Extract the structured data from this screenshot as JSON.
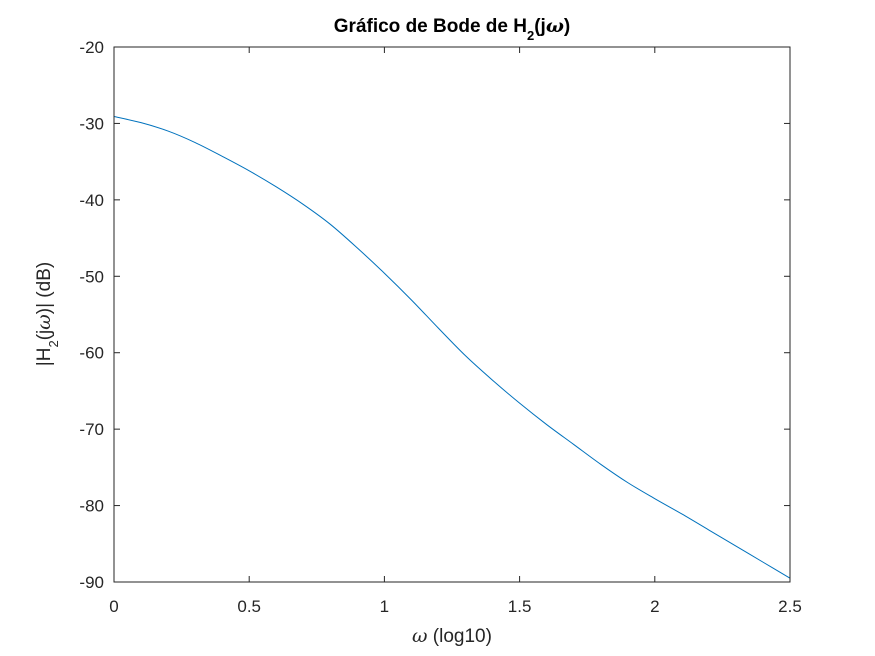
{
  "chart_data": {
    "type": "line",
    "title": {
      "text": "Gráfico de Bode de H",
      "subscript": "2",
      "suffix_pre": "(j",
      "symbol": "ω",
      "suffix_post": ")"
    },
    "xlabel": {
      "symbol": "ω",
      "text": " (log10)"
    },
    "ylabel": {
      "prefix": "|H",
      "subscript": "2",
      "mid": "(j",
      "symbol": "ω",
      "suffix": ")| (dB)"
    },
    "xlim": [
      0,
      2.5
    ],
    "ylim": [
      -90,
      -20
    ],
    "xticks": [
      0,
      0.5,
      1,
      1.5,
      2,
      2.5
    ],
    "xtick_labels": [
      "0",
      "0.5",
      "1",
      "1.5",
      "2",
      "2.5"
    ],
    "yticks": [
      -90,
      -80,
      -70,
      -60,
      -50,
      -40,
      -30,
      -20
    ],
    "ytick_labels": [
      "-90",
      "-80",
      "-70",
      "-60",
      "-50",
      "-40",
      "-30",
      "-20"
    ],
    "grid": false,
    "series": [
      {
        "name": "H2",
        "color": "#0072BD",
        "x": [
          0,
          0.1,
          0.2,
          0.3,
          0.4,
          0.5,
          0.6,
          0.7,
          0.8,
          0.9,
          1.0,
          1.1,
          1.2,
          1.3,
          1.4,
          1.5,
          1.6,
          1.7,
          1.8,
          1.9,
          2.0,
          2.1,
          2.2,
          2.3,
          2.4,
          2.5
        ],
        "y": [
          -29.1,
          -29.9,
          -31.0,
          -32.5,
          -34.3,
          -36.2,
          -38.3,
          -40.6,
          -43.2,
          -46.3,
          -49.6,
          -53.1,
          -56.8,
          -60.4,
          -63.6,
          -66.6,
          -69.4,
          -72.0,
          -74.6,
          -77.0,
          -79.1,
          -81.1,
          -83.2,
          -85.3,
          -87.4,
          -89.5
        ]
      }
    ]
  }
}
